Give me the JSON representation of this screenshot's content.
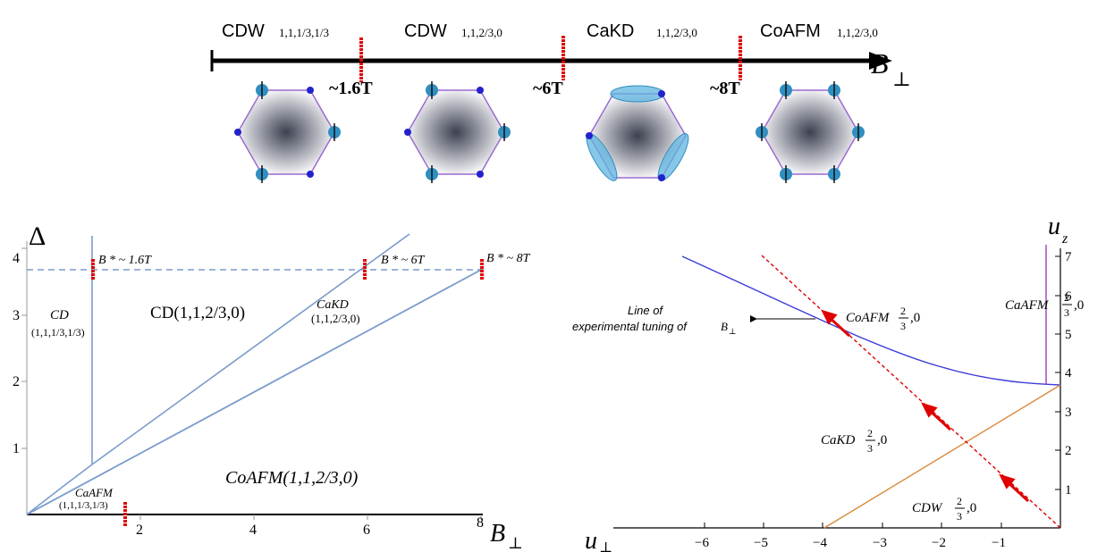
{
  "timeline": {
    "phases": [
      {
        "name": "CDW",
        "indices": "1,1,1/3,1/3"
      },
      {
        "name": "CDW",
        "indices": "1,1,2/3,0"
      },
      {
        "name": "CaKD",
        "indices": "1,1,2/3,0"
      },
      {
        "name": "CoAFM",
        "indices": "1,1,2/3,0"
      }
    ],
    "markers": [
      "~1.6T",
      "~6T",
      "~8T"
    ],
    "axis_label": "B",
    "axis_sub": "⊥"
  },
  "left_plot": {
    "ylabel": "Δ",
    "xlabel": "B",
    "xlabel_sub": "⊥",
    "xticks": [
      "2",
      "4",
      "6",
      "8"
    ],
    "yticks": [
      "1",
      "2",
      "3",
      "4"
    ],
    "marks": [
      "B * ~ 1.6T",
      "B * ~ 6T",
      "B * ~ 8T"
    ],
    "regions": [
      {
        "title": "CD",
        "sub": "(1,1,1/3,1/3)"
      },
      {
        "title": "CD(1,1,2/3,0)",
        "sub": ""
      },
      {
        "title": "CaKD",
        "sub": "(1,1,2/3,0)"
      },
      {
        "title": "CoAFM(1,1,2/3,0)",
        "sub": ""
      },
      {
        "title": "CaAFM",
        "sub": "(1,1,1/3,1/3)"
      }
    ]
  },
  "right_plot": {
    "xlabel": "u",
    "xlabel_sub": "⊥",
    "ylabel": "u",
    "ylabel_sub": "z",
    "xticks": [
      "−6",
      "−5",
      "−4",
      "−3",
      "−2",
      "−1"
    ],
    "yticks": [
      "1",
      "2",
      "3",
      "4",
      "5",
      "6",
      "7"
    ],
    "annotation_line1": "Line of",
    "annotation_line2": "experimental tuning of",
    "annotation_sym": "B",
    "annotation_sub": "⊥",
    "phases": [
      "CoAFM",
      "CaKD",
      "CDW",
      "CaAFM"
    ],
    "frac_num": "2",
    "frac_den": "3",
    "frac_tail": ",0"
  }
}
